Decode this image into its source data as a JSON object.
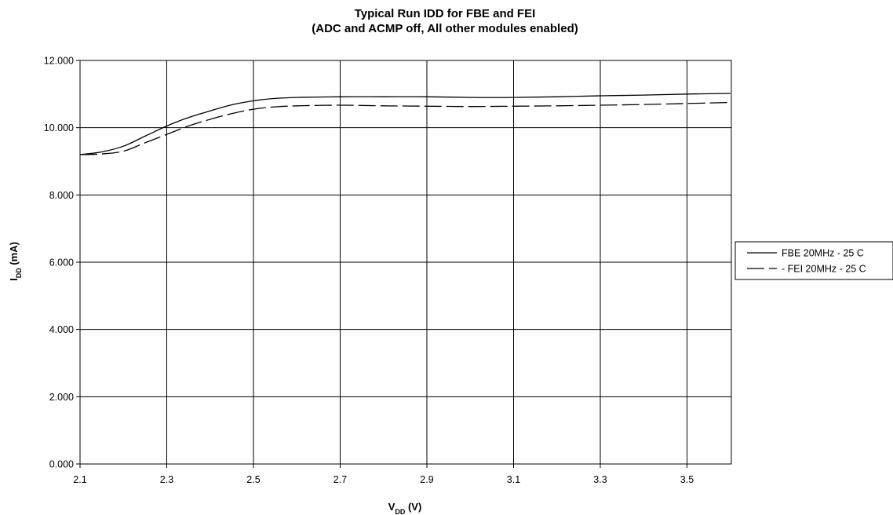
{
  "chart_data": {
    "type": "line",
    "title": "Typical Run IDD for FBE and FEI",
    "subtitle": "(ADC and ACMP off, All other modules enabled)",
    "xlabel": {
      "main": "V",
      "sub": "DD",
      "unit": " (V)"
    },
    "ylabel": {
      "main": "I",
      "sub": "DD",
      "unit": " (mA)"
    },
    "x_ticks": [
      "2.1",
      "2.3",
      "2.5",
      "2.7",
      "2.9",
      "3.1",
      "3.3",
      "3.5"
    ],
    "y_ticks": [
      "0.000",
      "2.000",
      "4.000",
      "6.000",
      "8.000",
      "10.000",
      "12.000"
    ],
    "xlim": [
      2.1,
      3.6
    ],
    "ylim": [
      0,
      12
    ],
    "grid": true,
    "legend_position": "right",
    "series": [
      {
        "name": "FBE 20MHz - 25 C",
        "style": "solid",
        "color": "#000000",
        "x": [
          2.1,
          2.15,
          2.2,
          2.25,
          2.3,
          2.35,
          2.4,
          2.45,
          2.5,
          2.55,
          2.6,
          2.7,
          2.8,
          2.9,
          3.0,
          3.1,
          3.2,
          3.3,
          3.4,
          3.5,
          3.6
        ],
        "y": [
          9.2,
          9.28,
          9.45,
          9.75,
          10.05,
          10.3,
          10.5,
          10.68,
          10.8,
          10.87,
          10.9,
          10.92,
          10.92,
          10.92,
          10.9,
          10.9,
          10.92,
          10.95,
          10.97,
          11.0,
          11.02
        ]
      },
      {
        "name": "FEI 20MHz - 25 C",
        "style": "dashed",
        "color": "#000000",
        "x": [
          2.1,
          2.15,
          2.2,
          2.25,
          2.3,
          2.35,
          2.4,
          2.45,
          2.5,
          2.55,
          2.6,
          2.7,
          2.8,
          2.9,
          3.0,
          3.1,
          3.2,
          3.3,
          3.4,
          3.5,
          3.6
        ],
        "y": [
          9.2,
          9.22,
          9.3,
          9.55,
          9.8,
          10.05,
          10.25,
          10.42,
          10.55,
          10.62,
          10.65,
          10.67,
          10.65,
          10.64,
          10.63,
          10.64,
          10.65,
          10.67,
          10.69,
          10.72,
          10.75
        ]
      }
    ]
  }
}
